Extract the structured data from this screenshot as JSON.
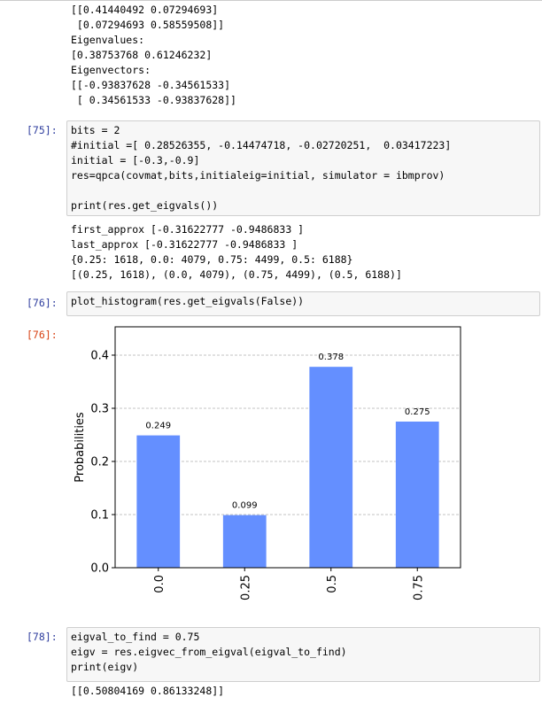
{
  "cells": [
    {
      "output": "[[0.41440492 0.07294693]\n [0.07294693 0.58559508]]\nEigenvalues:\n[0.38753768 0.61246232]\nEigenvectors:\n[[-0.93837628 -0.34561533]\n [ 0.34561533 -0.93837628]]"
    },
    {
      "prompt": "[75]:",
      "code": "bits = 2\n#initial =[ 0.28526355, -0.14474718, -0.02720251,  0.03417223]\ninitial = [-0.3,-0.9]\nres=qpca(covmat,bits,initialeig=initial, simulator = ibmprov)\n\nprint(res.get_eigvals())",
      "output": "first_approx [-0.31622777 -0.9486833 ]\nlast_approx [-0.31622777 -0.9486833 ]\n{0.25: 1618, 0.0: 4079, 0.75: 4499, 0.5: 6188}\n[(0.25, 1618), (0.0, 4079), (0.75, 4499), (0.5, 6188)]"
    },
    {
      "prompt": "[76]:",
      "code": "plot_histogram(res.get_eigvals(False))",
      "output_prompt": "[76]:"
    },
    {
      "prompt": "[78]:",
      "code": "eigval_to_find = 0.75\neigv = res.eigvec_from_eigval(eigval_to_find)\nprint(eigv)",
      "output": "[[0.50804169 0.86133248]]"
    }
  ],
  "chart_data": {
    "type": "bar",
    "ylabel": "Probabilities",
    "categories": [
      "0.0",
      "0.25",
      "0.5",
      "0.75"
    ],
    "values": [
      0.249,
      0.099,
      0.378,
      0.275
    ],
    "color": "#648fff",
    "ylim": [
      0,
      0.4533
    ],
    "yticks": [
      {
        "value": 0,
        "label": "0.0"
      },
      0.1,
      0.2,
      0.3,
      0.4
    ],
    "grid": true
  }
}
